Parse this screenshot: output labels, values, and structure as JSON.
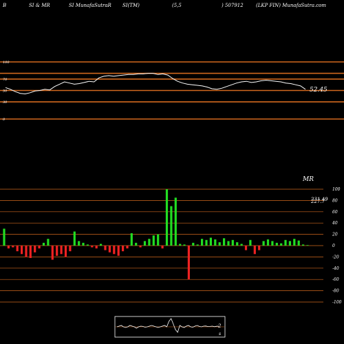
{
  "header": {
    "seg1": "B",
    "seg2": "SI & MR",
    "seg3": "SI MunafaSutraR",
    "seg4": "SI(TM)",
    "seg5": "(5,5",
    "seg6": ") 507912",
    "seg7": "(LKP FIN) MunafaSutra.com"
  },
  "colors": {
    "background": "#000000",
    "band": "#d2691e",
    "rsi_line": "#ffffff",
    "positive": "#22dd22",
    "negative": "#ee2222",
    "grid": "#d2691e"
  },
  "chart_data": [
    {
      "type": "line",
      "panel": "rsi",
      "ylim": [
        0,
        100
      ],
      "ticks": [
        "100",
        "70",
        "50",
        "30",
        "0"
      ],
      "reference_levels": [
        100,
        80,
        70,
        50,
        30,
        0
      ],
      "last_value_label": "52.45",
      "values": [
        55,
        52,
        48,
        45,
        44,
        46,
        49,
        50,
        52,
        51,
        57,
        61,
        65,
        63,
        61,
        62,
        64,
        66,
        65,
        72,
        75,
        76,
        75,
        76,
        77,
        78,
        78,
        79,
        79,
        80,
        80,
        78,
        79,
        77,
        71,
        66,
        63,
        61,
        60,
        59,
        58,
        56,
        53,
        52,
        54,
        57,
        60,
        63,
        65,
        66,
        64,
        65,
        67,
        68,
        67,
        66,
        65,
        63,
        62,
        60,
        58,
        52
      ]
    },
    {
      "type": "bar",
      "panel": "mrsi",
      "title": "MR",
      "ylim": [
        -100,
        100
      ],
      "ticks": [
        "100",
        "80",
        "60",
        "40",
        "20",
        "0",
        "-20",
        "-40",
        "-60",
        "-80",
        "-100"
      ],
      "overlay_labels": [
        "231.49",
        "227.7"
      ],
      "values": [
        30,
        -5,
        -3,
        -10,
        -15,
        -20,
        -22,
        -12,
        -5,
        5,
        12,
        -25,
        -18,
        -15,
        -20,
        -10,
        25,
        8,
        5,
        2,
        -3,
        -5,
        3,
        -8,
        -12,
        -15,
        -18,
        -10,
        -5,
        22,
        5,
        -3,
        8,
        12,
        18,
        20,
        -5,
        100,
        70,
        85,
        3,
        2,
        -60,
        5,
        2,
        12,
        10,
        14,
        11,
        6,
        13,
        8,
        10,
        6,
        3,
        -8,
        10,
        -15,
        -8,
        8,
        11,
        8,
        5,
        4,
        10,
        8,
        12,
        9,
        2,
        1
      ]
    },
    {
      "type": "line",
      "panel": "mini",
      "label": "2",
      "bottom_label": "s",
      "values": [
        0,
        0.5,
        1,
        0,
        -0.5,
        0,
        1,
        0.5,
        0,
        -1,
        0,
        0.5,
        0.3,
        -0.3,
        0,
        0.5,
        1,
        0.5,
        0,
        -0.5,
        0,
        0.5,
        1,
        0,
        4,
        6,
        2,
        -2,
        -4,
        1,
        0,
        -0.5,
        0.5,
        1,
        0,
        -0.3,
        0.5,
        1,
        0.3,
        0,
        0.5,
        0.6,
        0.2,
        0.3,
        0.5,
        0.1,
        0.4,
        0.5
      ]
    }
  ]
}
